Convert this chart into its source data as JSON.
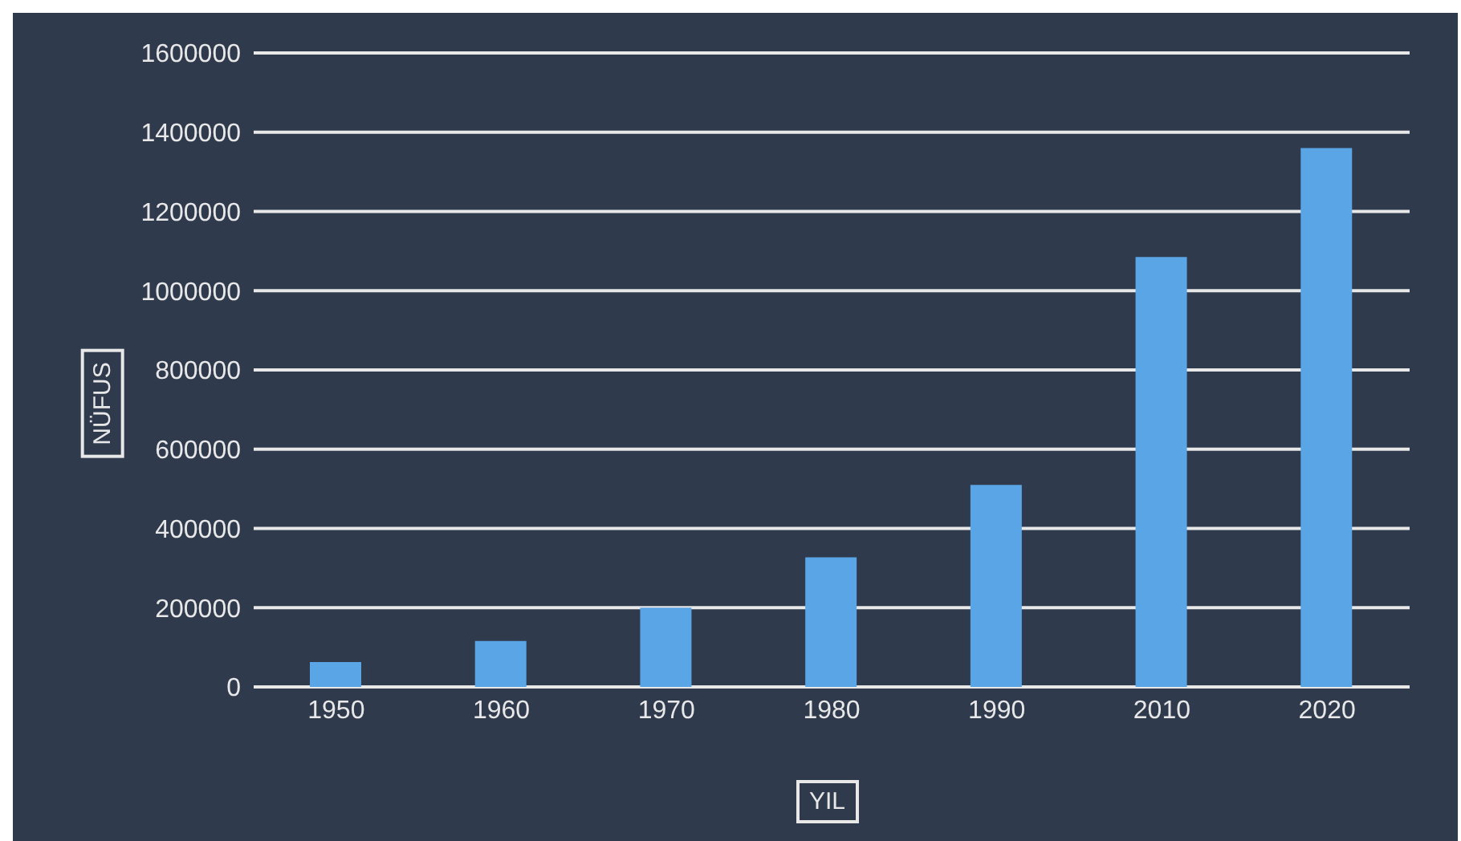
{
  "chart_data": {
    "type": "bar",
    "xlabel": "YIL",
    "ylabel": "NÜFUS",
    "categories": [
      "1950",
      "1960",
      "1970",
      "1980",
      "1990",
      "2010",
      "2020"
    ],
    "values": [
      63000,
      116000,
      200000,
      327000,
      510000,
      1085000,
      1360000
    ],
    "color": "#5aa5e6",
    "ylim": [
      0,
      1600000
    ],
    "yticks": [
      0,
      200000,
      400000,
      600000,
      800000,
      1000000,
      1200000,
      1400000,
      1600000
    ],
    "grid": "y"
  }
}
